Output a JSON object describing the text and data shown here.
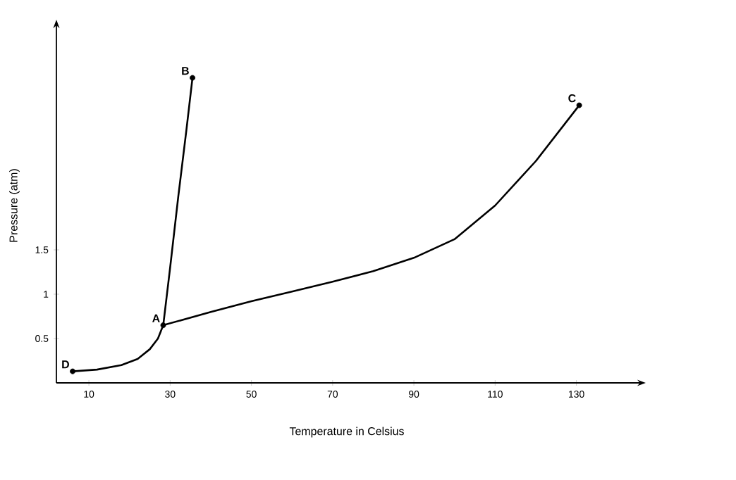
{
  "chart_data": {
    "type": "line",
    "xlabel": "Temperature in Celsius",
    "ylabel": "Pressure (atm)",
    "xlim": [
      2,
      145
    ],
    "ylim": [
      0,
      4
    ],
    "xticks": [
      10,
      30,
      50,
      70,
      90,
      110,
      130
    ],
    "yticks": [
      0.5,
      1,
      1.5
    ],
    "grid": false,
    "series": [
      {
        "color": "#000000",
        "x": [
          6,
          12,
          18,
          22,
          25,
          27,
          28.3
        ],
        "values": [
          0.13,
          0.15,
          0.2,
          0.27,
          0.38,
          0.5,
          0.65
        ]
      },
      {
        "color": "#000000",
        "x": [
          28.3,
          30,
          32,
          34,
          35.5
        ],
        "values": [
          0.65,
          1.3,
          2.1,
          2.85,
          3.44
        ]
      },
      {
        "color": "#000000",
        "x": [
          28.3,
          40,
          50,
          60,
          70,
          80,
          90,
          100,
          110,
          120,
          130.7
        ],
        "values": [
          0.65,
          0.8,
          0.92,
          1.03,
          1.14,
          1.26,
          1.41,
          1.62,
          2.0,
          2.5,
          3.13
        ]
      },
      {
        "type": "scatter",
        "color": "#000000",
        "marker": "circle",
        "x": [
          6,
          28.3,
          35.5,
          130.7
        ],
        "values": [
          0.13,
          0.65,
          3.44,
          3.13
        ]
      }
    ],
    "annotations": [
      {
        "text": "**B**",
        "x": 35.5,
        "y": 3.44
      },
      {
        "text": "**C**",
        "x": 130.7,
        "y": 3.13
      },
      {
        "text": "**A**",
        "x": 28.3,
        "y": 0.65
      },
      {
        "text": "**D**",
        "x": 6,
        "y": 0.13
      }
    ]
  }
}
